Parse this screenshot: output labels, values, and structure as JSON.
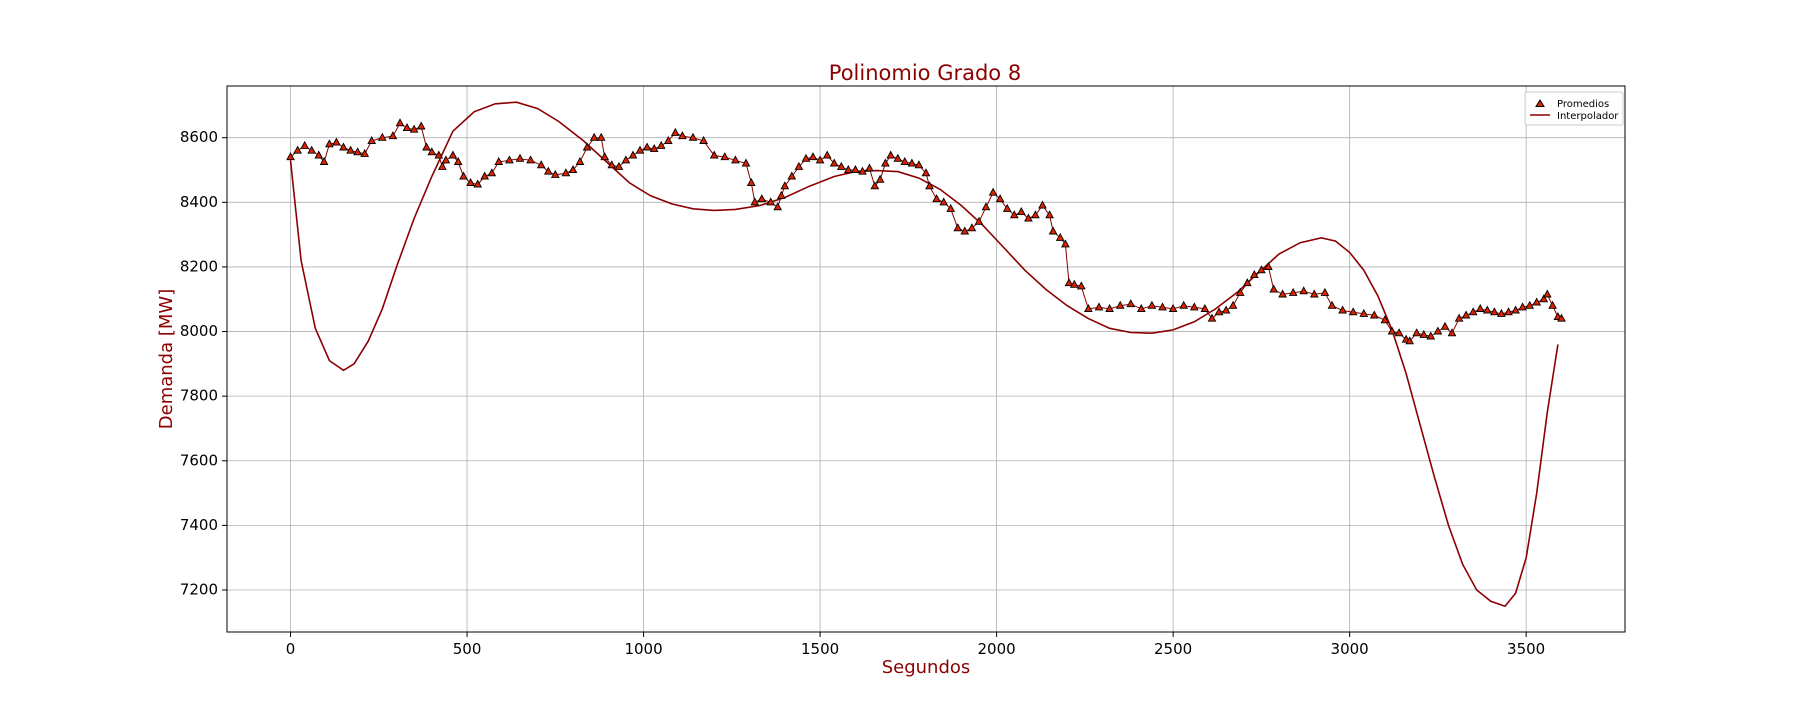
{
  "chart_data": {
    "type": "line",
    "title": "Polinomio Grado 8",
    "xlabel": "Segundos",
    "ylabel": "Demanda [MW]",
    "xlim": [
      -180,
      3780
    ],
    "ylim": [
      7070,
      8760
    ],
    "xticks": [
      0,
      500,
      1000,
      1500,
      2000,
      2500,
      3000,
      3500
    ],
    "yticks": [
      7200,
      7400,
      7600,
      7800,
      8000,
      8200,
      8400,
      8600
    ],
    "grid": true,
    "legend_position": "top-right",
    "colors": {
      "title": "#8b0000",
      "axis_label": "#8b0000",
      "line": "#8b0000",
      "marker_fill": "#dd2200",
      "marker_edge": "#000000",
      "grid": "#b0b0b0"
    },
    "series": [
      {
        "name": "Promedios",
        "kind": "scatter",
        "marker": "triangle",
        "points": [
          [
            0,
            8540
          ],
          [
            20,
            8560
          ],
          [
            40,
            8575
          ],
          [
            60,
            8560
          ],
          [
            80,
            8545
          ],
          [
            95,
            8525
          ],
          [
            110,
            8580
          ],
          [
            130,
            8585
          ],
          [
            150,
            8570
          ],
          [
            170,
            8560
          ],
          [
            190,
            8555
          ],
          [
            210,
            8550
          ],
          [
            230,
            8590
          ],
          [
            260,
            8600
          ],
          [
            290,
            8605
          ],
          [
            310,
            8645
          ],
          [
            330,
            8630
          ],
          [
            350,
            8625
          ],
          [
            370,
            8635
          ],
          [
            385,
            8570
          ],
          [
            400,
            8555
          ],
          [
            420,
            8545
          ],
          [
            430,
            8510
          ],
          [
            440,
            8530
          ],
          [
            460,
            8545
          ],
          [
            475,
            8525
          ],
          [
            490,
            8480
          ],
          [
            510,
            8460
          ],
          [
            530,
            8455
          ],
          [
            550,
            8480
          ],
          [
            570,
            8490
          ],
          [
            590,
            8525
          ],
          [
            620,
            8530
          ],
          [
            650,
            8535
          ],
          [
            680,
            8530
          ],
          [
            710,
            8515
          ],
          [
            730,
            8495
          ],
          [
            750,
            8485
          ],
          [
            780,
            8490
          ],
          [
            800,
            8500
          ],
          [
            820,
            8525
          ],
          [
            840,
            8570
          ],
          [
            860,
            8600
          ],
          [
            880,
            8600
          ],
          [
            890,
            8540
          ],
          [
            910,
            8515
          ],
          [
            930,
            8510
          ],
          [
            950,
            8530
          ],
          [
            970,
            8545
          ],
          [
            990,
            8560
          ],
          [
            1010,
            8570
          ],
          [
            1030,
            8565
          ],
          [
            1050,
            8575
          ],
          [
            1070,
            8590
          ],
          [
            1090,
            8615
          ],
          [
            1110,
            8605
          ],
          [
            1140,
            8600
          ],
          [
            1170,
            8590
          ],
          [
            1200,
            8545
          ],
          [
            1230,
            8540
          ],
          [
            1260,
            8530
          ],
          [
            1290,
            8520
          ],
          [
            1305,
            8460
          ],
          [
            1315,
            8400
          ],
          [
            1335,
            8410
          ],
          [
            1360,
            8400
          ],
          [
            1380,
            8385
          ],
          [
            1390,
            8420
          ],
          [
            1400,
            8450
          ],
          [
            1420,
            8480
          ],
          [
            1440,
            8510
          ],
          [
            1460,
            8535
          ],
          [
            1480,
            8540
          ],
          [
            1500,
            8530
          ],
          [
            1520,
            8545
          ],
          [
            1540,
            8520
          ],
          [
            1560,
            8510
          ],
          [
            1580,
            8500
          ],
          [
            1600,
            8500
          ],
          [
            1620,
            8495
          ],
          [
            1640,
            8505
          ],
          [
            1655,
            8450
          ],
          [
            1670,
            8470
          ],
          [
            1685,
            8520
          ],
          [
            1700,
            8545
          ],
          [
            1720,
            8535
          ],
          [
            1740,
            8525
          ],
          [
            1760,
            8520
          ],
          [
            1780,
            8515
          ],
          [
            1800,
            8490
          ],
          [
            1810,
            8450
          ],
          [
            1830,
            8410
          ],
          [
            1850,
            8400
          ],
          [
            1870,
            8380
          ],
          [
            1890,
            8320
          ],
          [
            1910,
            8310
          ],
          [
            1930,
            8320
          ],
          [
            1950,
            8340
          ],
          [
            1970,
            8385
          ],
          [
            1990,
            8430
          ],
          [
            2010,
            8410
          ],
          [
            2030,
            8380
          ],
          [
            2050,
            8360
          ],
          [
            2070,
            8370
          ],
          [
            2090,
            8350
          ],
          [
            2110,
            8360
          ],
          [
            2130,
            8390
          ],
          [
            2150,
            8360
          ],
          [
            2160,
            8310
          ],
          [
            2180,
            8290
          ],
          [
            2195,
            8270
          ],
          [
            2205,
            8150
          ],
          [
            2220,
            8145
          ],
          [
            2240,
            8140
          ],
          [
            2260,
            8070
          ],
          [
            2290,
            8075
          ],
          [
            2320,
            8070
          ],
          [
            2350,
            8080
          ],
          [
            2380,
            8085
          ],
          [
            2410,
            8070
          ],
          [
            2440,
            8080
          ],
          [
            2470,
            8075
          ],
          [
            2500,
            8070
          ],
          [
            2530,
            8080
          ],
          [
            2560,
            8075
          ],
          [
            2590,
            8070
          ],
          [
            2610,
            8040
          ],
          [
            2630,
            8060
          ],
          [
            2650,
            8065
          ],
          [
            2670,
            8080
          ],
          [
            2690,
            8120
          ],
          [
            2710,
            8150
          ],
          [
            2730,
            8175
          ],
          [
            2750,
            8190
          ],
          [
            2770,
            8200
          ],
          [
            2785,
            8130
          ],
          [
            2810,
            8115
          ],
          [
            2840,
            8120
          ],
          [
            2870,
            8125
          ],
          [
            2900,
            8115
          ],
          [
            2930,
            8120
          ],
          [
            2950,
            8080
          ],
          [
            2980,
            8065
          ],
          [
            3010,
            8060
          ],
          [
            3040,
            8055
          ],
          [
            3070,
            8050
          ],
          [
            3100,
            8035
          ],
          [
            3120,
            8000
          ],
          [
            3140,
            7995
          ],
          [
            3160,
            7975
          ],
          [
            3170,
            7970
          ],
          [
            3190,
            7995
          ],
          [
            3210,
            7990
          ],
          [
            3230,
            7985
          ],
          [
            3250,
            8000
          ],
          [
            3270,
            8015
          ],
          [
            3290,
            7995
          ],
          [
            3310,
            8040
          ],
          [
            3330,
            8050
          ],
          [
            3350,
            8060
          ],
          [
            3370,
            8070
          ],
          [
            3390,
            8065
          ],
          [
            3410,
            8060
          ],
          [
            3430,
            8055
          ],
          [
            3450,
            8060
          ],
          [
            3470,
            8065
          ],
          [
            3490,
            8075
          ],
          [
            3510,
            8080
          ],
          [
            3530,
            8090
          ],
          [
            3550,
            8100
          ],
          [
            3560,
            8115
          ],
          [
            3575,
            8080
          ],
          [
            3590,
            8045
          ],
          [
            3600,
            8040
          ]
        ]
      },
      {
        "name": "Interpolador",
        "kind": "line",
        "points": [
          [
            0,
            8530
          ],
          [
            30,
            8220
          ],
          [
            70,
            8010
          ],
          [
            110,
            7910
          ],
          [
            150,
            7880
          ],
          [
            180,
            7900
          ],
          [
            220,
            7970
          ],
          [
            260,
            8070
          ],
          [
            300,
            8200
          ],
          [
            350,
            8350
          ],
          [
            400,
            8480
          ],
          [
            460,
            8620
          ],
          [
            520,
            8680
          ],
          [
            580,
            8705
          ],
          [
            640,
            8710
          ],
          [
            700,
            8690
          ],
          [
            760,
            8650
          ],
          [
            830,
            8590
          ],
          [
            900,
            8520
          ],
          [
            960,
            8460
          ],
          [
            1020,
            8420
          ],
          [
            1080,
            8395
          ],
          [
            1140,
            8380
          ],
          [
            1200,
            8375
          ],
          [
            1260,
            8378
          ],
          [
            1330,
            8390
          ],
          [
            1400,
            8415
          ],
          [
            1470,
            8450
          ],
          [
            1540,
            8480
          ],
          [
            1600,
            8495
          ],
          [
            1660,
            8498
          ],
          [
            1720,
            8495
          ],
          [
            1780,
            8475
          ],
          [
            1840,
            8440
          ],
          [
            1900,
            8390
          ],
          [
            1960,
            8330
          ],
          [
            2020,
            8260
          ],
          [
            2080,
            8190
          ],
          [
            2140,
            8130
          ],
          [
            2200,
            8080
          ],
          [
            2260,
            8040
          ],
          [
            2320,
            8010
          ],
          [
            2380,
            7997
          ],
          [
            2440,
            7995
          ],
          [
            2500,
            8005
          ],
          [
            2560,
            8030
          ],
          [
            2620,
            8070
          ],
          [
            2680,
            8120
          ],
          [
            2740,
            8180
          ],
          [
            2800,
            8240
          ],
          [
            2860,
            8275
          ],
          [
            2920,
            8290
          ],
          [
            2960,
            8280
          ],
          [
            3000,
            8245
          ],
          [
            3040,
            8190
          ],
          [
            3080,
            8110
          ],
          [
            3120,
            8005
          ],
          [
            3160,
            7870
          ],
          [
            3200,
            7710
          ],
          [
            3240,
            7550
          ],
          [
            3280,
            7400
          ],
          [
            3320,
            7280
          ],
          [
            3360,
            7200
          ],
          [
            3400,
            7165
          ],
          [
            3440,
            7150
          ],
          [
            3470,
            7190
          ],
          [
            3500,
            7300
          ],
          [
            3530,
            7500
          ],
          [
            3560,
            7750
          ],
          [
            3590,
            7960
          ]
        ]
      }
    ]
  }
}
